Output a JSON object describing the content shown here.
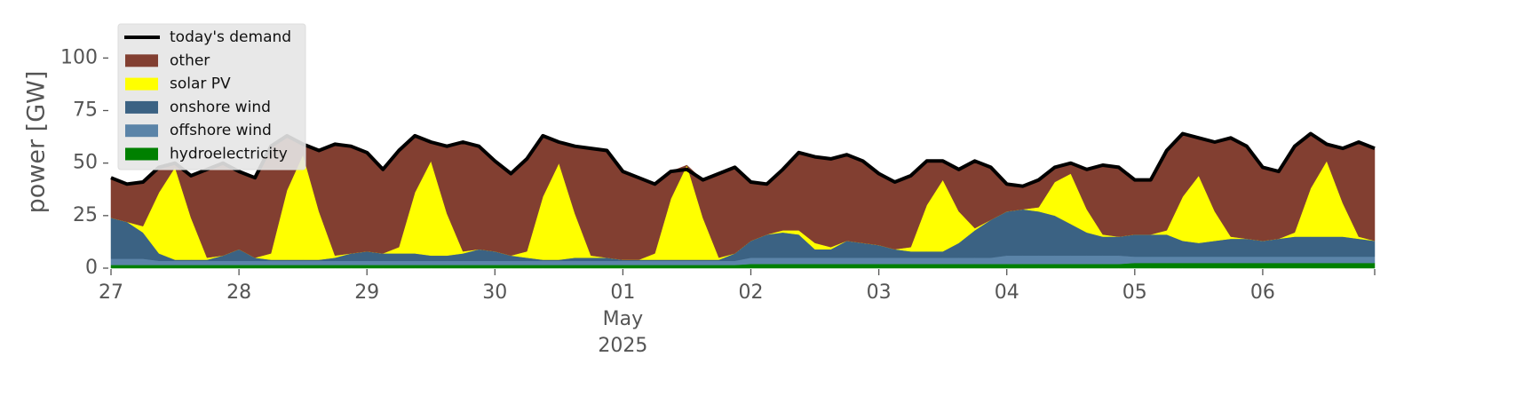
{
  "chart_data": {
    "type": "stacked-area",
    "y_label": "power [GW]",
    "x": [
      "2025-04-27T00:00",
      "2025-04-27T03:00",
      "2025-04-27T06:00",
      "2025-04-27T09:00",
      "2025-04-27T12:00",
      "2025-04-27T15:00",
      "2025-04-27T18:00",
      "2025-04-27T21:00",
      "2025-04-28T00:00",
      "2025-04-28T03:00",
      "2025-04-28T06:00",
      "2025-04-28T09:00",
      "2025-04-28T12:00",
      "2025-04-28T15:00",
      "2025-04-28T18:00",
      "2025-04-28T21:00",
      "2025-04-29T00:00",
      "2025-04-29T03:00",
      "2025-04-29T06:00",
      "2025-04-29T09:00",
      "2025-04-29T12:00",
      "2025-04-29T15:00",
      "2025-04-29T18:00",
      "2025-04-29T21:00",
      "2025-04-30T00:00",
      "2025-04-30T03:00",
      "2025-04-30T06:00",
      "2025-04-30T09:00",
      "2025-04-30T12:00",
      "2025-04-30T15:00",
      "2025-04-30T18:00",
      "2025-04-30T21:00",
      "2025-05-01T00:00",
      "2025-05-01T03:00",
      "2025-05-01T06:00",
      "2025-05-01T09:00",
      "2025-05-01T12:00",
      "2025-05-01T15:00",
      "2025-05-01T18:00",
      "2025-05-01T21:00",
      "2025-05-02T00:00",
      "2025-05-02T03:00",
      "2025-05-02T06:00",
      "2025-05-02T09:00",
      "2025-05-02T12:00",
      "2025-05-02T15:00",
      "2025-05-02T18:00",
      "2025-05-02T21:00",
      "2025-05-03T00:00",
      "2025-05-03T03:00",
      "2025-05-03T06:00",
      "2025-05-03T09:00",
      "2025-05-03T12:00",
      "2025-05-03T15:00",
      "2025-05-03T18:00",
      "2025-05-03T21:00",
      "2025-05-04T00:00",
      "2025-05-04T03:00",
      "2025-05-04T06:00",
      "2025-05-04T09:00",
      "2025-05-04T12:00",
      "2025-05-04T15:00",
      "2025-05-04T18:00",
      "2025-05-04T21:00",
      "2025-05-05T00:00",
      "2025-05-05T03:00",
      "2025-05-05T06:00",
      "2025-05-05T09:00",
      "2025-05-05T12:00",
      "2025-05-05T15:00",
      "2025-05-05T18:00",
      "2025-05-05T21:00",
      "2025-05-06T00:00",
      "2025-05-06T03:00",
      "2025-05-06T06:00",
      "2025-05-06T09:00",
      "2025-05-06T12:00",
      "2025-05-06T15:00",
      "2025-05-06T18:00",
      "2025-05-06T21:00"
    ],
    "series": [
      {
        "name": "hydroelectricity",
        "color": "#008000",
        "values": [
          1.5,
          1.5,
          1.5,
          1.5,
          1.5,
          1.5,
          1.5,
          1.5,
          1.5,
          1.5,
          1.5,
          1.5,
          1.5,
          1.5,
          1.5,
          1.5,
          1.5,
          1.5,
          1.5,
          1.5,
          1.5,
          1.5,
          1.5,
          1.5,
          1.5,
          1.5,
          1.5,
          1.5,
          1.5,
          1.5,
          1.5,
          1.5,
          1.5,
          1.5,
          1.5,
          1.5,
          1.5,
          1.5,
          1.5,
          1.5,
          2,
          2,
          2,
          2,
          2,
          2,
          2,
          2,
          2,
          2,
          2,
          2,
          2,
          2,
          2,
          2,
          2,
          2,
          2,
          2,
          2,
          2,
          2,
          2,
          2.5,
          2.5,
          2.5,
          2.5,
          2.5,
          2.5,
          2.5,
          2.5,
          2.5,
          2.5,
          2.5,
          2.5,
          2.5,
          2.5,
          2.5,
          2.5
        ]
      },
      {
        "name": "offshore wind",
        "color": "#5b84a8",
        "values": [
          3,
          3,
          3,
          2,
          2,
          2,
          2,
          2,
          2,
          2,
          2,
          2,
          2,
          2,
          2,
          2,
          2,
          2,
          2,
          2,
          2,
          2,
          2,
          2,
          2,
          2,
          2,
          2,
          2,
          2,
          2,
          2,
          2,
          2,
          2,
          2,
          2,
          2,
          2,
          2,
          3,
          3,
          3,
          3,
          3,
          3,
          3,
          3,
          3,
          3,
          3,
          3,
          3,
          3,
          3,
          3,
          4,
          4,
          4,
          4,
          4,
          4,
          4,
          4,
          3,
          3,
          3,
          3,
          3,
          3,
          3,
          3,
          3,
          3,
          3,
          3,
          3,
          3,
          3,
          3
        ]
      },
      {
        "name": "onshore wind",
        "color": "#3b6283",
        "values": [
          19.5,
          17.5,
          12.5,
          3.5,
          0.5,
          0.5,
          0.5,
          2.5,
          5.5,
          1.5,
          0.5,
          0.5,
          0.5,
          0.5,
          1.5,
          3.5,
          4.5,
          3.5,
          3.5,
          3.5,
          2.5,
          2.5,
          3.5,
          5.5,
          4.5,
          2.5,
          1.5,
          0.5,
          0.5,
          1.5,
          1.5,
          1.5,
          0.5,
          0.5,
          0.5,
          0.5,
          0.5,
          0.5,
          0.5,
          3.5,
          8,
          11,
          12,
          11,
          4,
          4,
          8,
          7,
          6,
          4,
          3,
          3,
          3,
          7,
          13,
          18,
          21,
          22,
          21,
          19,
          15,
          11,
          9,
          9,
          10.5,
          10.5,
          10.5,
          7.5,
          6.5,
          7.5,
          8.5,
          8.5,
          7.5,
          8.5,
          9.5,
          9.5,
          9.5,
          9.5,
          8.5,
          7.5
        ]
      },
      {
        "name": "solar PV",
        "color": "#ffff00",
        "values": [
          0,
          0,
          3,
          29,
          44,
          20,
          1,
          0,
          0,
          0,
          3,
          33,
          50,
          23,
          1,
          0,
          0,
          0,
          3,
          29,
          45,
          20,
          1,
          0,
          0,
          0,
          3,
          30,
          46,
          21,
          1,
          0,
          0,
          0,
          3,
          29,
          45,
          20,
          1,
          0,
          0,
          0,
          1,
          2,
          3,
          1,
          0,
          0,
          0,
          0,
          2,
          22,
          34,
          15,
          1,
          0,
          0,
          0,
          2,
          16,
          24,
          11,
          1,
          0,
          0,
          0,
          2,
          21,
          32,
          14,
          1,
          0,
          0,
          0,
          2,
          23,
          36,
          16,
          1,
          0
        ]
      },
      {
        "name": "other",
        "color": "#823f31",
        "values": [
          19,
          18,
          21,
          12,
          2,
          20,
          42,
          44,
          37,
          38,
          51,
          26,
          5,
          29,
          53,
          51,
          47,
          40,
          46,
          27,
          9,
          32,
          52,
          49,
          43,
          39,
          44,
          29,
          10,
          32,
          51,
          51,
          42,
          39,
          33,
          13,
          0,
          18,
          40,
          41,
          28,
          24,
          29,
          37,
          41,
          42,
          41,
          39,
          34,
          32,
          34,
          21,
          9,
          20,
          32,
          25,
          13,
          11,
          13,
          7,
          5,
          19,
          33,
          33,
          26,
          26,
          38,
          30,
          18,
          33,
          47,
          44,
          35,
          32,
          41,
          26,
          8,
          26,
          45,
          44
        ]
      }
    ],
    "demand": {
      "name": "today's demand",
      "color": "#000000",
      "values": [
        43,
        40,
        41,
        48,
        50,
        44,
        47,
        50,
        46,
        43,
        58,
        63,
        59,
        56,
        59,
        58,
        55,
        47,
        56,
        63,
        60,
        58,
        60,
        58,
        51,
        45,
        52,
        63,
        60,
        58,
        57,
        56,
        46,
        43,
        40,
        46,
        47,
        42,
        45,
        48,
        41,
        40,
        47,
        55,
        53,
        52,
        54,
        51,
        45,
        41,
        44,
        51,
        51,
        47,
        51,
        48,
        40,
        39,
        42,
        48,
        50,
        47,
        49,
        48,
        42,
        42,
        56,
        64,
        62,
        60,
        62,
        58,
        48,
        46,
        58,
        64,
        59,
        57,
        60,
        57
      ]
    },
    "xlim": [
      "2025-04-27T00:00",
      "2025-05-06T21:00"
    ],
    "xticks": [
      {
        "value": "2025-04-27T00:00",
        "label": [
          "27"
        ]
      },
      {
        "value": "2025-04-28T00:00",
        "label": [
          "28"
        ]
      },
      {
        "value": "2025-04-29T00:00",
        "label": [
          "29"
        ]
      },
      {
        "value": "2025-04-30T00:00",
        "label": [
          "30"
        ]
      },
      {
        "value": "2025-05-01T00:00",
        "label": [
          "01",
          "May",
          "2025"
        ]
      },
      {
        "value": "2025-05-02T00:00",
        "label": [
          "02"
        ]
      },
      {
        "value": "2025-05-03T00:00",
        "label": [
          "03"
        ]
      },
      {
        "value": "2025-05-04T00:00",
        "label": [
          "04"
        ]
      },
      {
        "value": "2025-05-05T00:00",
        "label": [
          "05"
        ]
      },
      {
        "value": "2025-05-06T00:00",
        "label": [
          "06"
        ]
      }
    ],
    "ylim": [
      0,
      120
    ],
    "yticks": [
      0,
      25,
      50,
      75,
      100
    ],
    "legend": "upper left"
  }
}
